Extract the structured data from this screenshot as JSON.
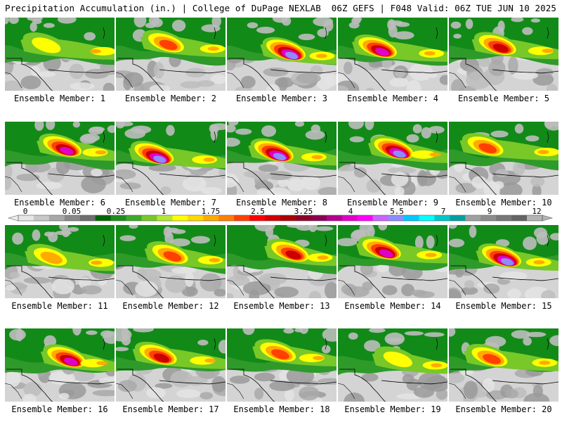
{
  "header": {
    "left": "Precipitation Accumulation (in.) | College of DuPage NEXLAB",
    "right": "06Z GEFS | F048 Valid: 06Z TUE JUN 10 2025"
  },
  "members": [
    {
      "label": "Ensemble Member: 1",
      "max": 1.4
    },
    {
      "label": "Ensemble Member: 2",
      "max": 2.5
    },
    {
      "label": "Ensemble Member: 3",
      "max": 5.5
    },
    {
      "label": "Ensemble Member: 4",
      "max": 5.0
    },
    {
      "label": "Ensemble Member: 5",
      "max": 3.25
    },
    {
      "label": "Ensemble Member: 6",
      "max": 4.5
    },
    {
      "label": "Ensemble Member: 7",
      "max": 6.5
    },
    {
      "label": "Ensemble Member: 8",
      "max": 6.0
    },
    {
      "label": "Ensemble Member: 9",
      "max": 5.5
    },
    {
      "label": "Ensemble Member: 10",
      "max": 2.5
    },
    {
      "label": "Ensemble Member: 11",
      "max": 1.75
    },
    {
      "label": "Ensemble Member: 12",
      "max": 2.5
    },
    {
      "label": "Ensemble Member: 13",
      "max": 4.0
    },
    {
      "label": "Ensemble Member: 14",
      "max": 5.0
    },
    {
      "label": "Ensemble Member: 15",
      "max": 6.0
    },
    {
      "label": "Ensemble Member: 16",
      "max": 5.0
    },
    {
      "label": "Ensemble Member: 17",
      "max": 3.5
    },
    {
      "label": "Ensemble Member: 18",
      "max": 2.5
    },
    {
      "label": "Ensemble Member: 19",
      "max": 1.5
    },
    {
      "label": "Ensemble Member: 20",
      "max": 3.0
    }
  ],
  "colorbar": {
    "labels": [
      "0",
      "0.05",
      "0.25",
      "1",
      "1.75",
      "2.5",
      "3.25",
      "4",
      "5.5",
      "7",
      "9",
      "12"
    ],
    "colors": [
      "#e6e6e6",
      "#c8c8c8",
      "#a8a8a8",
      "#8a8a8a",
      "#6e6e6e",
      "#006400",
      "#1e8c1e",
      "#3caa28",
      "#78c828",
      "#b4e632",
      "#ffff00",
      "#ffd800",
      "#ffaa00",
      "#ff7f00",
      "#ff4000",
      "#ff0000",
      "#d20000",
      "#aa0000",
      "#8c0028",
      "#8c0050",
      "#b4008c",
      "#e100c8",
      "#ff00ff",
      "#c864ff",
      "#8c8cff",
      "#00c8ff",
      "#00ffff",
      "#00c8c8",
      "#00a0a0",
      "#a0a0a0",
      "#8c8c8c",
      "#787878",
      "#646464",
      "#b4b4b4"
    ]
  }
}
